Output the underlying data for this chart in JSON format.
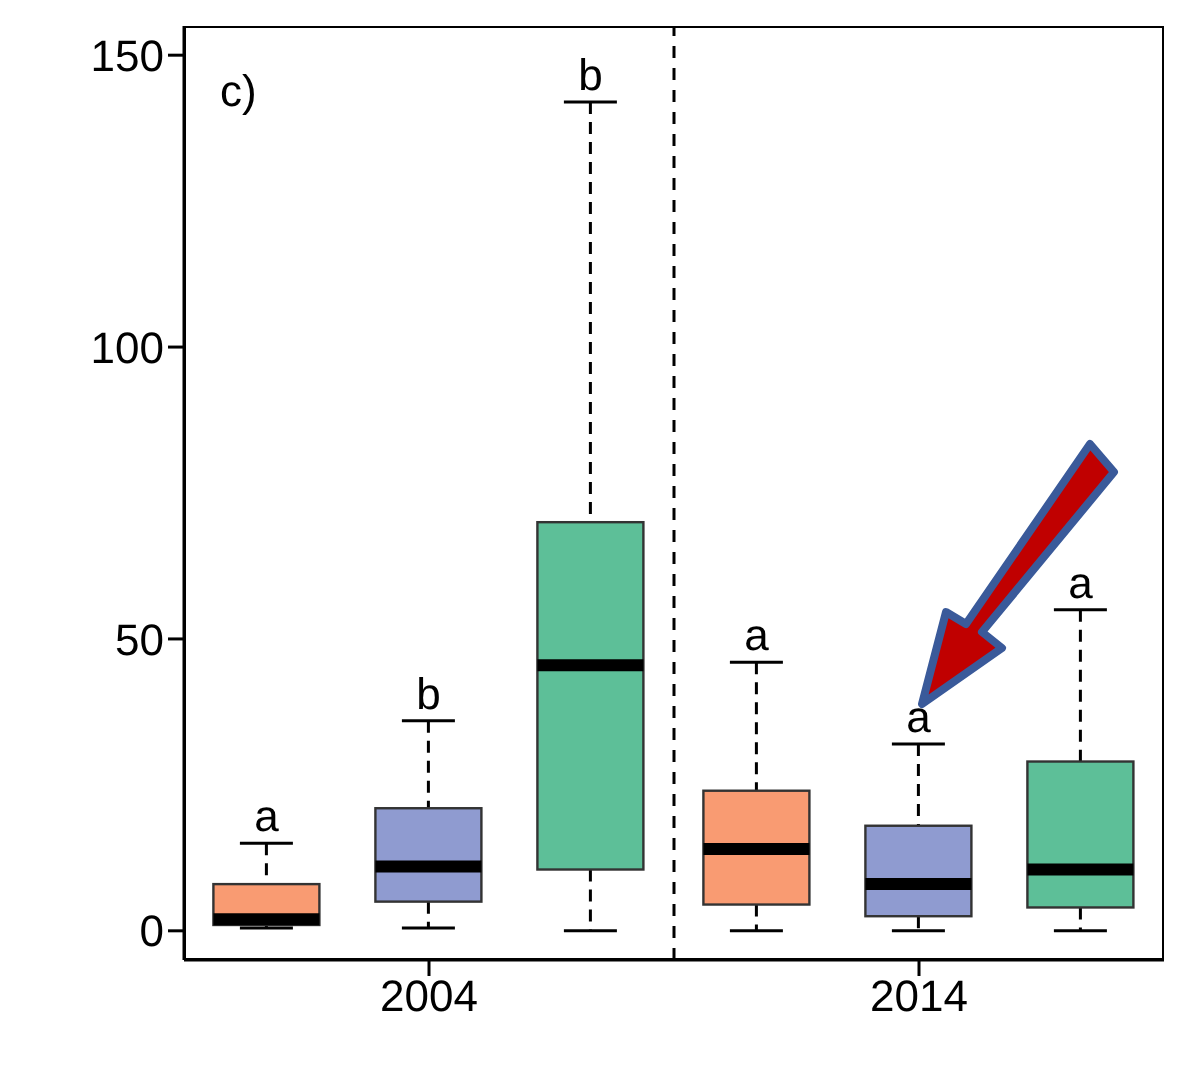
{
  "chart_data": {
    "type": "box",
    "categories": [
      "2004",
      "2014"
    ],
    "series": [
      {
        "color": "#f99b72",
        "boxes": [
          {
            "low": 0.5,
            "q1": 1,
            "median": 2,
            "q3": 8,
            "high": 15
          },
          {
            "low": 0,
            "q1": 4.5,
            "median": 14,
            "q3": 24,
            "high": 46
          }
        ]
      },
      {
        "color": "#8f9bd0",
        "boxes": [
          {
            "low": 0.5,
            "q1": 5,
            "median": 11,
            "q3": 21,
            "high": 36
          },
          {
            "low": 0,
            "q1": 2.5,
            "median": 8,
            "q3": 18,
            "high": 32
          }
        ]
      },
      {
        "color": "#5dbf98",
        "boxes": [
          {
            "low": 0,
            "q1": 10.5,
            "median": 45.5,
            "q3": 70,
            "high": 142
          },
          {
            "low": 0,
            "q1": 4,
            "median": 10.5,
            "q3": 29,
            "high": 55
          }
        ]
      }
    ],
    "ylim": [
      -5,
      155
    ],
    "yticks": [
      0,
      50,
      100,
      150
    ],
    "grid": false,
    "legend": false,
    "annotations": [
      "c)",
      "a",
      "b",
      "b",
      "a",
      "a",
      "a"
    ]
  }
}
